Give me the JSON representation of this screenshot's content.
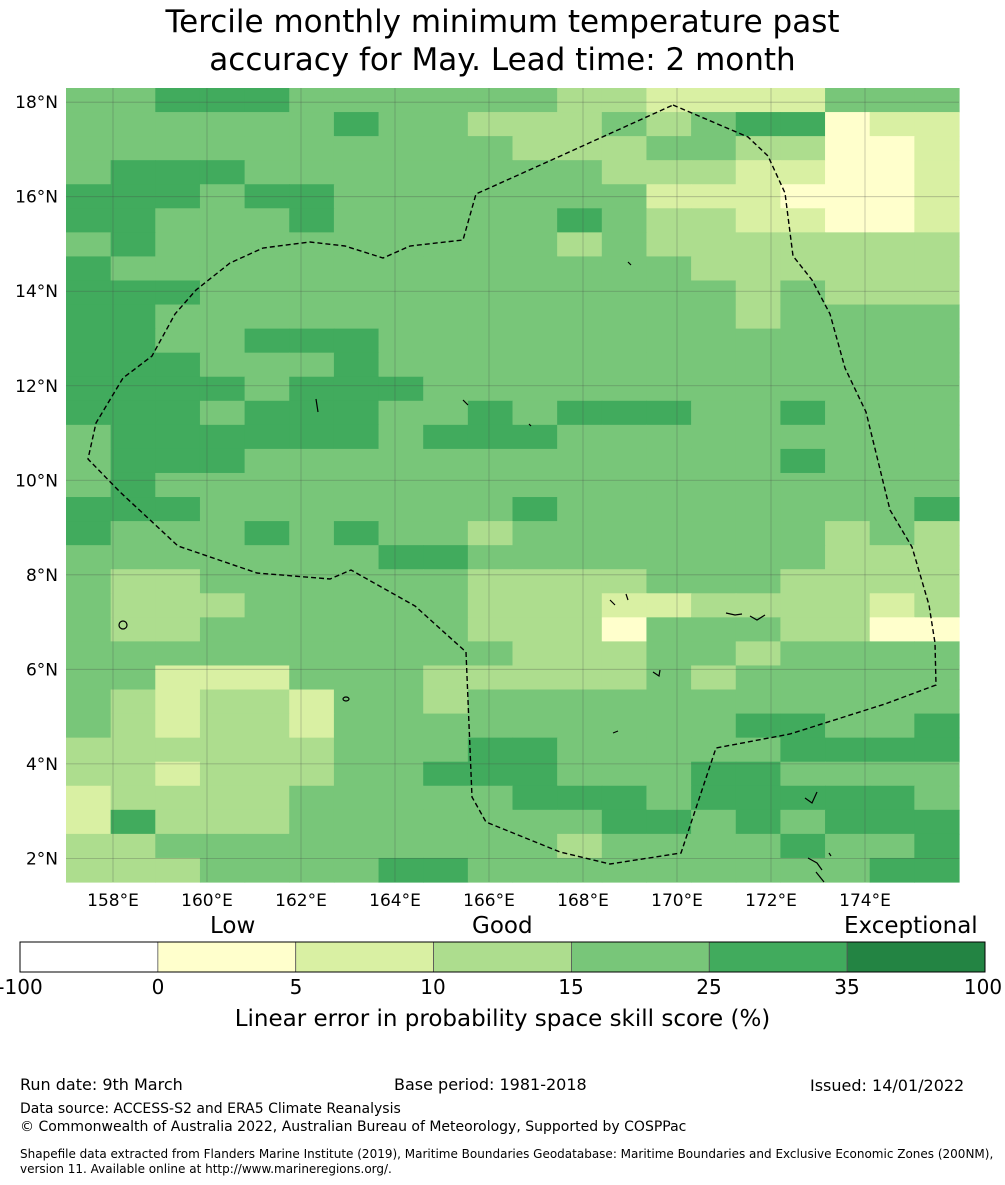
{
  "title": {
    "line1": "Tercile monthly minimum temperature past",
    "line2": "accuracy for May. Lead time: 2 month"
  },
  "axes": {
    "lat_labels": [
      "18°N",
      "16°N",
      "14°N",
      "12°N",
      "10°N",
      "8°N",
      "6°N",
      "4°N",
      "2°N"
    ],
    "lon_labels": [
      "158°E",
      "160°E",
      "162°E",
      "164°E",
      "166°E",
      "168°E",
      "170°E",
      "172°E",
      "174°E"
    ]
  },
  "colorbar": {
    "categories": [
      "Low",
      "Good",
      "Exceptional"
    ],
    "ticks": [
      "-100",
      "0",
      "5",
      "10",
      "15",
      "25",
      "35",
      "100"
    ],
    "colors": [
      "#ffffff",
      "#ffffcc",
      "#d9f0a3",
      "#addd8e",
      "#78c679",
      "#41ab5d",
      "#238443"
    ],
    "title": "Linear error in probability space skill score (%)"
  },
  "footer": {
    "run_date": "Run date: 9th March",
    "base_period": "Base period: 1981-2018",
    "issued": "Issued: 14/01/2022",
    "data_source": "Data source: ACCESS-S2 and ERA5 Climate Reanalysis",
    "copyright": "© Commonwealth of Australia 2022, Australian Bureau of Meteorology, Supported by COSPPac",
    "shapefile_line1": "Shapefile data extracted from Flanders Marine Institute (2019), Maritime Boundaries Geodatabase: Maritime Boundaries and Exclusive Economic Zones (200NM),",
    "shapefile_line2": "version 11. Available online at http://www.marineregions.org/."
  },
  "chart_data": {
    "type": "heatmap",
    "title": "Tercile monthly minimum temperature past accuracy for May. Lead time: 2 month",
    "legend": [
      "Low",
      "Good",
      "Exceptional"
    ],
    "value_key": {
      "0": "0 to 5",
      "1": "5 to 10",
      "2": "10 to 15",
      "3": "15 to 25",
      "4": "25 to 35"
    },
    "lon_range": [
      157.0,
      176.0
    ],
    "lat_range": [
      1.5,
      18.3
    ],
    "cell_deg": 0.833,
    "rows_north_to_south": [
      "33444333333221111333",
      "33333343322232344011",
      "33333333332223322001",
      "34443333333322211001",
      "44434433333331110001",
      "44333433333432211001",
      "34333333333232222222",
      "43333333333333222222",
      "44433333333333323222",
      "44333333333333323333",
      "44334443333333333333",
      "44433343333333333333",
      "44443444333333333333",
      "44434443343444334333",
      "34444443444333333333",
      "34443333333333334333",
      "34333333333333333333",
      "44433333334333333334",
      "43334343323333333232",
      "33333334433333333222",
      "32233333322223332222",
      "32223333322211222212",
      "32233333322203332200",
      "33333333332223323333",
      "33111333222223233333",
      "32122133233333333333",
      "32122133333333344334",
      "22222233344333334444",
      "22122233444333443333",
      "12222333334443444443",
      "14222333333344343444",
      "22333333333233334334",
      "22233334433333333344"
    ]
  }
}
